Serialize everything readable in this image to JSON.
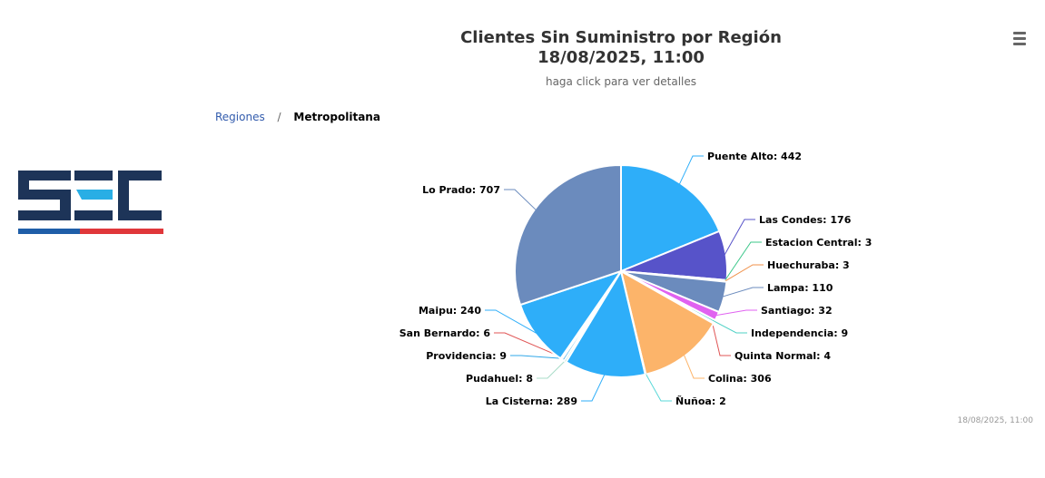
{
  "title_line1": "Clientes Sin Suministro por Región",
  "title_line2": "18/08/2025, 11:00",
  "subtitle": "haga click para ver detalles",
  "breadcrumb": {
    "root": "Regiones",
    "separator": "/",
    "current": "Metropolitana"
  },
  "credits": "18/08/2025, 11:00",
  "menu_icon": "hamburger-menu-icon",
  "logo_text": "SEC",
  "colors": {
    "logo_navy": "#1d3458",
    "logo_cyan": "#29aee5",
    "logo_blue": "#1f5ea8",
    "logo_red": "#e0373a"
  },
  "chart_data": {
    "type": "pie",
    "title": "Clientes Sin Suministro por Región",
    "subtitle": "haga click para ver detalles",
    "slices": [
      {
        "name": "Puente Alto",
        "value": 442,
        "color": "#2eaef9"
      },
      {
        "name": "Las Condes",
        "value": 176,
        "color": "#5753c9"
      },
      {
        "name": "Estacion Central",
        "value": 3,
        "color": "#3cc78a"
      },
      {
        "name": "Huechuraba",
        "value": 3,
        "color": "#f0914a"
      },
      {
        "name": "Lampa",
        "value": 110,
        "color": "#6b8bbd"
      },
      {
        "name": "Santiago",
        "value": 32,
        "color": "#e062f0"
      },
      {
        "name": "Independencia",
        "value": 9,
        "color": "#4fd1c5"
      },
      {
        "name": "Quinta Normal",
        "value": 4,
        "color": "#e05555"
      },
      {
        "name": "Colina",
        "value": 306,
        "color": "#fcb46a"
      },
      {
        "name": "Ñuñoa",
        "value": 2,
        "color": "#5ad8d8"
      },
      {
        "name": "La Cisterna",
        "value": 289,
        "color": "#2eaef9"
      },
      {
        "name": "Pudahuel",
        "value": 8,
        "color": "#a8dcc8"
      },
      {
        "name": "Providencia",
        "value": 9,
        "color": "#32a8e8"
      },
      {
        "name": "San Bernardo",
        "value": 6,
        "color": "#e05555"
      },
      {
        "name": "Maipu",
        "value": 240,
        "color": "#2eaef9"
      },
      {
        "name": "Lo Prado",
        "value": 707,
        "color": "#6b8bbd"
      }
    ]
  }
}
